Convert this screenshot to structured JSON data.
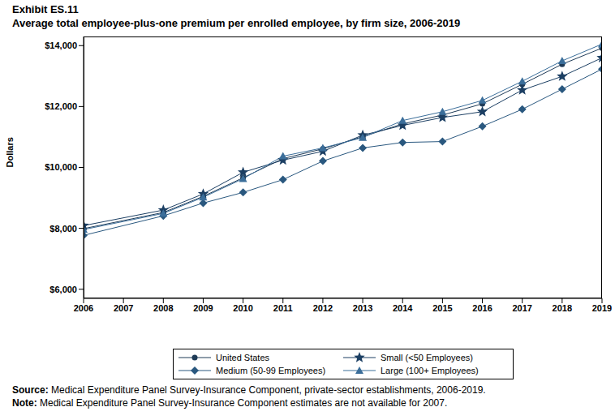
{
  "chart_data": {
    "type": "line",
    "title": "Exhibit ES.11",
    "subtitle": "Average total employee-plus-one premium per enrolled employee, by firm size, 2006-2019",
    "y_label": "Dollars",
    "x": [
      2006,
      2008,
      2009,
      2010,
      2011,
      2012,
      2013,
      2014,
      2015,
      2016,
      2017,
      2018,
      2019
    ],
    "xlim": [
      2006,
      2019
    ],
    "xticks": [
      2006,
      2007,
      2008,
      2009,
      2010,
      2011,
      2012,
      2013,
      2014,
      2015,
      2016,
      2017,
      2018,
      2019
    ],
    "ylim": [
      5700,
      14300
    ],
    "yticks": [
      {
        "value": 6000,
        "label": "$6,000"
      },
      {
        "value": 8000,
        "label": "$8,000"
      },
      {
        "value": 10000,
        "label": "$10,000"
      },
      {
        "value": 12000,
        "label": "$12,000"
      },
      {
        "value": 14000,
        "label": "$14,000"
      }
    ],
    "grid": false,
    "legend": "bottom",
    "series": [
      {
        "name": "United States",
        "color": "#1f3b57",
        "marker": "circle",
        "values": [
          7990,
          8520,
          9050,
          9660,
          10290,
          10610,
          11010,
          11430,
          11720,
          12090,
          12730,
          13390,
          13920
        ]
      },
      {
        "name": "Small (<50 Employees)",
        "color": "#1c3f63",
        "marker": "star",
        "values": [
          8090,
          8600,
          9130,
          9840,
          10240,
          10530,
          11060,
          11380,
          11640,
          11830,
          12540,
          12990,
          13600
        ]
      },
      {
        "name": "Medium (50-99 Employees)",
        "color": "#2a587f",
        "marker": "diamond",
        "values": [
          7770,
          8410,
          8830,
          9180,
          9600,
          10210,
          10640,
          10820,
          10850,
          11350,
          11910,
          12570,
          13230
        ]
      },
      {
        "name": "Large (100+ Employees)",
        "color": "#3b6e9a",
        "marker": "triangle",
        "values": [
          7960,
          8490,
          9020,
          9630,
          10370,
          10640,
          10980,
          11540,
          11830,
          12200,
          12830,
          13500,
          14050
        ]
      }
    ],
    "notes": [
      {
        "label": "Source:",
        "text": "Medical Expenditure Panel Survey-Insurance Component, private-sector establishments, 2006-2019."
      },
      {
        "label": "Note:",
        "text": "Medical Expenditure Panel Survey-Insurance Component estimates are not available for 2007."
      }
    ]
  }
}
